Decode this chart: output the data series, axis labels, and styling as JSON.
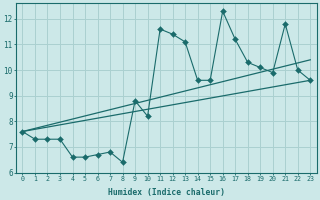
{
  "xlabel": "Humidex (Indice chaleur)",
  "bg_color": "#cce8e8",
  "grid_color": "#aad0d0",
  "line_color": "#1a6b6b",
  "xlim": [
    -0.5,
    23.5
  ],
  "ylim": [
    6,
    12.6
  ],
  "yticks": [
    6,
    7,
    8,
    9,
    10,
    11,
    12
  ],
  "xticks": [
    0,
    1,
    2,
    3,
    4,
    5,
    6,
    7,
    8,
    9,
    10,
    11,
    12,
    13,
    14,
    15,
    16,
    17,
    18,
    19,
    20,
    21,
    22,
    23
  ],
  "xlabels": [
    "0",
    "1",
    "2",
    "3",
    "4",
    "5",
    "6",
    "7",
    "8",
    "9",
    "10",
    "11",
    "12",
    "13",
    "14",
    "15",
    "16",
    "17",
    "18",
    "19",
    "20",
    "21",
    "22",
    "23"
  ],
  "main_x": [
    0,
    1,
    2,
    3,
    4,
    5,
    6,
    7,
    8,
    9,
    10,
    11,
    12,
    13,
    14,
    15,
    16,
    17,
    18,
    19,
    20,
    21,
    22,
    23
  ],
  "main_y": [
    7.6,
    7.3,
    7.3,
    7.3,
    6.6,
    6.6,
    6.7,
    6.8,
    6.4,
    8.8,
    8.2,
    11.6,
    11.4,
    11.1,
    9.6,
    9.6,
    12.3,
    11.2,
    10.3,
    10.1,
    9.9,
    11.8,
    10.0,
    9.6
  ],
  "trend1_x": [
    0,
    23
  ],
  "trend1_y": [
    7.6,
    9.6
  ],
  "trend2_x": [
    0,
    23
  ],
  "trend2_y": [
    7.6,
    10.4
  ],
  "marker_size": 3
}
